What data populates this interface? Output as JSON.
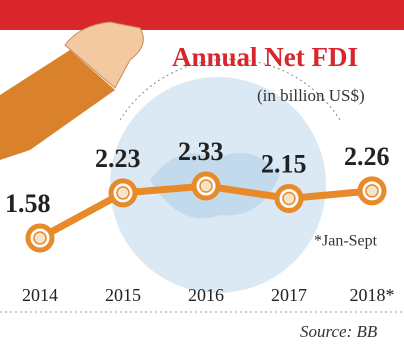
{
  "chart_data": {
    "type": "line",
    "title": "Annual Net FDI",
    "subtitle": "(in billion US$)",
    "categories": [
      "2014",
      "2015",
      "2016",
      "2017",
      "2018*"
    ],
    "values": [
      1.58,
      2.23,
      2.33,
      2.15,
      2.26
    ],
    "color": "#e8892a",
    "note": "*Jan-Sept",
    "source": "Source: BB"
  }
}
